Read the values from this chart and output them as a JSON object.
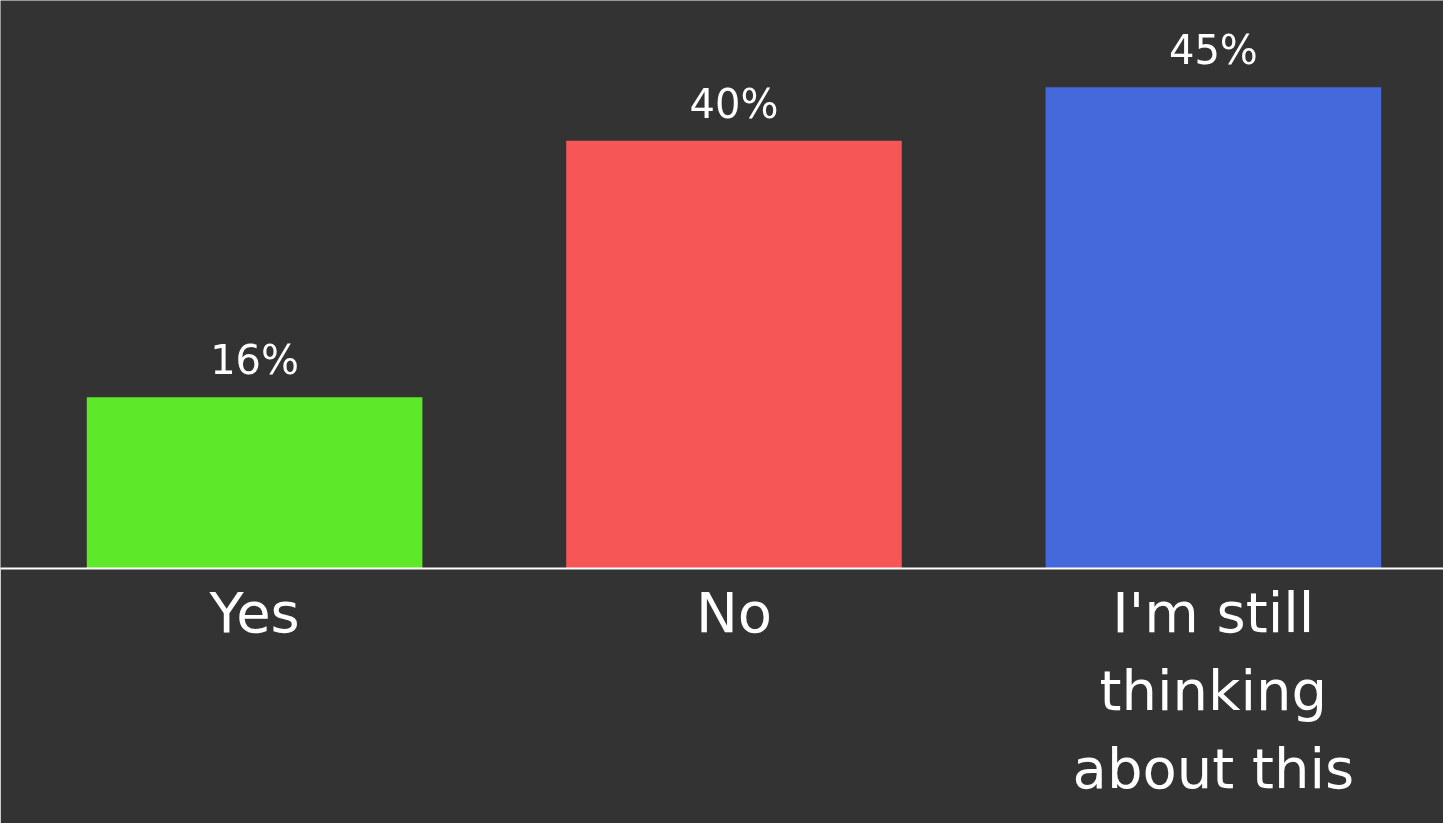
{
  "chart_data": {
    "type": "bar",
    "categories": [
      "Yes",
      "No",
      "I'm still thinking about this"
    ],
    "values": [
      16,
      40,
      45
    ],
    "colors": [
      "#5ee82a",
      "#f75656",
      "#4568db"
    ],
    "value_labels": [
      "16%",
      "40%",
      "45%"
    ],
    "grid": false
  }
}
